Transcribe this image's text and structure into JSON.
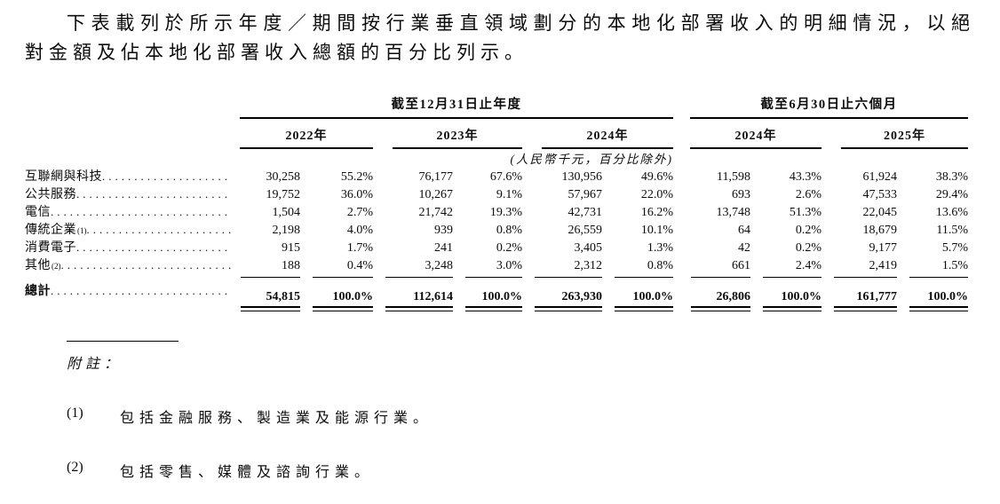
{
  "intro": "下表載列於所示年度／期間按行業垂直領域劃分的本地化部署收入的明細情況，以絕對金額及佔本地化部署收入總額的百分比列示。",
  "table": {
    "group_headers": [
      {
        "label": "截至12月31日止年度"
      },
      {
        "label": "截至6月30日止六個月"
      }
    ],
    "year_headers": [
      "2022年",
      "2023年",
      "2024年",
      "2024年",
      "2025年"
    ],
    "unit_note": "(人民幣千元，百分比除外)",
    "rows": [
      {
        "label": "互聯網與科技",
        "sup": "",
        "values": [
          "30,258",
          "55.2%",
          "76,177",
          "67.6%",
          "130,956",
          "49.6%",
          "11,598",
          "43.3%",
          "61,924",
          "38.3%"
        ]
      },
      {
        "label": "公共服務",
        "sup": "",
        "values": [
          "19,752",
          "36.0%",
          "10,267",
          "9.1%",
          "57,967",
          "22.0%",
          "693",
          "2.6%",
          "47,533",
          "29.4%"
        ]
      },
      {
        "label": "電信",
        "sup": "",
        "values": [
          "1,504",
          "2.7%",
          "21,742",
          "19.3%",
          "42,731",
          "16.2%",
          "13,748",
          "51.3%",
          "22,045",
          "13.6%"
        ]
      },
      {
        "label": "傳統企業",
        "sup": "(1)",
        "values": [
          "2,198",
          "4.0%",
          "939",
          "0.8%",
          "26,559",
          "10.1%",
          "64",
          "0.2%",
          "18,679",
          "11.5%"
        ]
      },
      {
        "label": "消費電子",
        "sup": "",
        "values": [
          "915",
          "1.7%",
          "241",
          "0.2%",
          "3,405",
          "1.3%",
          "42",
          "0.2%",
          "9,177",
          "5.7%"
        ]
      },
      {
        "label": "其他",
        "sup": "(2)",
        "values": [
          "188",
          "0.4%",
          "3,248",
          "3.0%",
          "2,312",
          "0.8%",
          "661",
          "2.4%",
          "2,419",
          "1.5%"
        ]
      }
    ],
    "total": {
      "label": "總計",
      "values": [
        "54,815",
        "100.0%",
        "112,614",
        "100.0%",
        "263,930",
        "100.0%",
        "26,806",
        "100.0%",
        "161,777",
        "100.0%"
      ]
    }
  },
  "footnotes": {
    "heading": "附註：",
    "items": [
      {
        "num": "(1)",
        "text": "包括金融服務、製造業及能源行業。"
      },
      {
        "num": "(2)",
        "text": "包括零售、媒體及諮詢行業。"
      }
    ]
  }
}
